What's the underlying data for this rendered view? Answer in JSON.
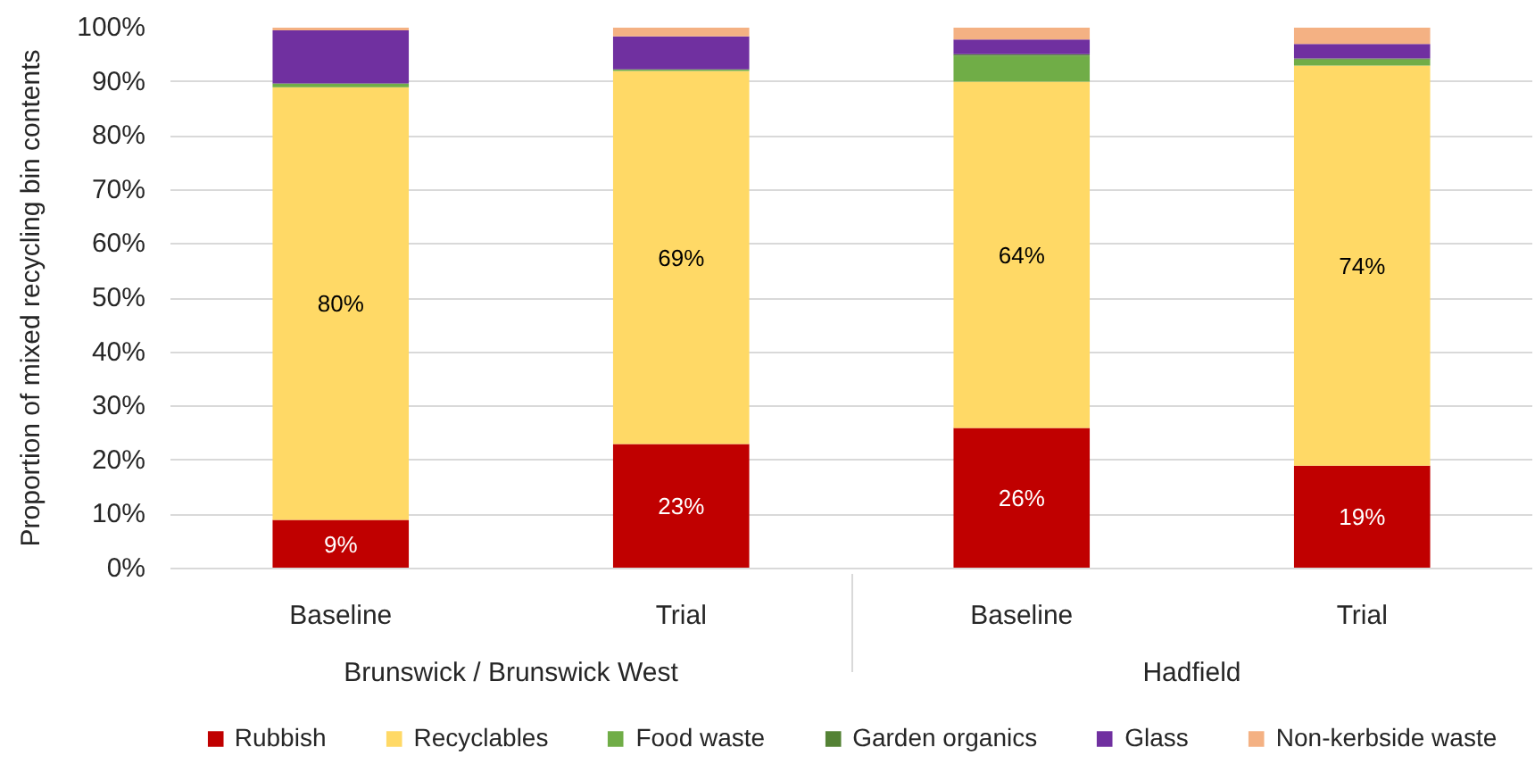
{
  "chart_data": {
    "type": "bar",
    "stacked": true,
    "categories": [
      "Baseline",
      "Trial",
      "Baseline",
      "Trial"
    ],
    "annotations": [
      "Brunswick / Brunswick West",
      "Hadfield"
    ],
    "ylabel": "Proportion of mixed recycling bin contents",
    "ylim": [
      0,
      100
    ],
    "yticks": [
      {
        "value": 0,
        "label": "0%"
      },
      {
        "value": 10,
        "label": "10%"
      },
      {
        "value": 20,
        "label": "20%"
      },
      {
        "value": 30,
        "label": "30%"
      },
      {
        "value": 40,
        "label": "40%"
      },
      {
        "value": 50,
        "label": "50%"
      },
      {
        "value": 60,
        "label": "60%"
      },
      {
        "value": 70,
        "label": "70%"
      },
      {
        "value": 80,
        "label": "80%"
      },
      {
        "value": 90,
        "label": "90%"
      },
      {
        "value": 100,
        "label": "100%"
      }
    ],
    "grid": "y",
    "legend": "bottom",
    "series": [
      {
        "name": "Rubbish",
        "color": "#c00000",
        "values": [
          9,
          23,
          26,
          19
        ],
        "value_labels": [
          "9%",
          "23%",
          "26%",
          "19%"
        ]
      },
      {
        "name": "Recyclables",
        "color": "#ffd966",
        "values": [
          80,
          69,
          64,
          74
        ],
        "value_labels": [
          "80%",
          "69%",
          "64%",
          "74%"
        ]
      },
      {
        "name": "Food waste",
        "color": "#70ad47",
        "values": [
          0.6,
          0.3,
          4.8,
          1.1
        ]
      },
      {
        "name": "Garden organics",
        "color": "#548235",
        "values": [
          0.1,
          0,
          0.3,
          0.2
        ]
      },
      {
        "name": "Glass",
        "color": "#7030a0",
        "values": [
          9.8,
          6.1,
          2.7,
          2.7
        ]
      },
      {
        "name": "Non-kerbside waste",
        "color": "#f4b183",
        "values": [
          0.5,
          1.6,
          2.2,
          3.0
        ]
      }
    ]
  }
}
